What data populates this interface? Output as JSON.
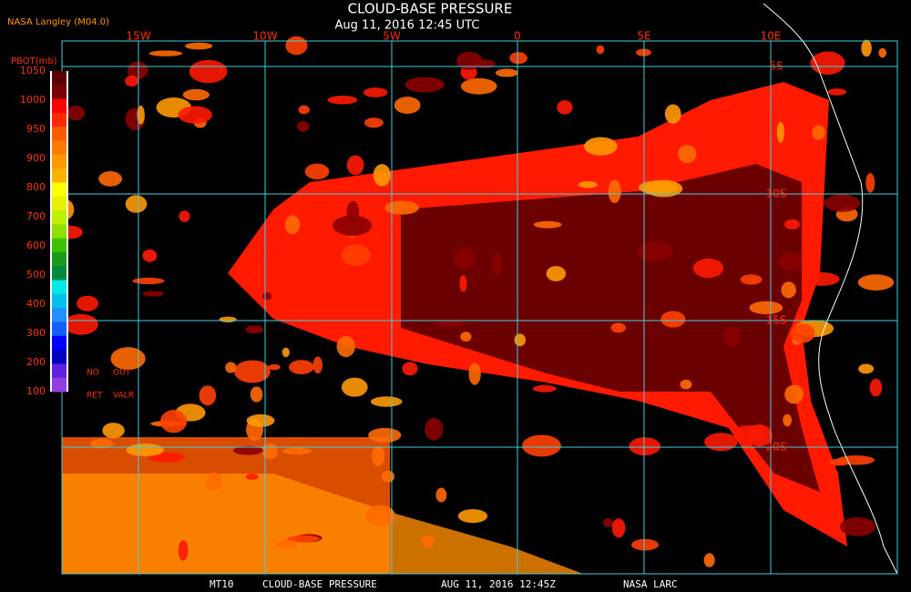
{
  "header": {
    "credit": "NASA Langley (M04.0)",
    "title": "CLOUD-BASE PRESSURE",
    "subtitle": "Aug 11, 2016 12:45 UTC"
  },
  "legend": {
    "title": "PBOT(mb)",
    "levels": [
      "1050",
      "1000",
      "950",
      "900",
      "800",
      "700",
      "600",
      "500",
      "400",
      "300",
      "200",
      "100"
    ],
    "notes": [
      "NO",
      "OUT",
      "RET",
      "VALR"
    ]
  },
  "grid": {
    "lon_labels": [
      "15W",
      "10W",
      "5W",
      "0",
      "5E",
      "10E"
    ],
    "lat_labels": [
      "5S",
      "10S",
      "15S",
      "20S"
    ]
  },
  "footer": [
    "MT10",
    "CLOUD-BASE PRESSURE",
    "AUG 11, 2016 12:45Z",
    "NASA LARC"
  ]
}
